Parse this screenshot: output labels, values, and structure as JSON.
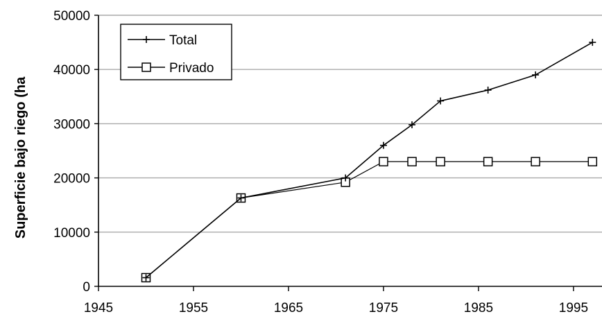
{
  "chart_data": {
    "type": "line",
    "title": "",
    "xlabel": "",
    "ylabel": "Superficie bajo riego (ha",
    "xlim": [
      1945,
      1998
    ],
    "ylim": [
      0,
      50000
    ],
    "x_ticks": [
      1945,
      1955,
      1965,
      1975,
      1985,
      1995
    ],
    "x_tick_labels": [
      "1945",
      "1955",
      "1965",
      "1975",
      "1985",
      "1995"
    ],
    "y_ticks": [
      0,
      10000,
      20000,
      30000,
      40000,
      50000
    ],
    "y_tick_labels": [
      "0",
      "10000",
      "20000",
      "30000",
      "40000",
      "50000"
    ],
    "grid": "horizontal",
    "legend_position": "top-left",
    "series": [
      {
        "name": "Total",
        "marker": "plus",
        "color": "#000000",
        "points": [
          {
            "x": 1950,
            "y": 1600
          },
          {
            "x": 1960,
            "y": 16300
          },
          {
            "x": 1971,
            "y": 20000
          },
          {
            "x": 1975,
            "y": 26000
          },
          {
            "x": 1978,
            "y": 29800
          },
          {
            "x": 1981,
            "y": 34200
          },
          {
            "x": 1986,
            "y": 36200
          },
          {
            "x": 1991,
            "y": 39000
          },
          {
            "x": 1997,
            "y": 45000
          }
        ]
      },
      {
        "name": "Privado",
        "marker": "square",
        "color": "#000000",
        "points": [
          {
            "x": 1950,
            "y": 1600
          },
          {
            "x": 1960,
            "y": 16300
          },
          {
            "x": 1971,
            "y": 19200
          },
          {
            "x": 1975,
            "y": 23000
          },
          {
            "x": 1978,
            "y": 23000
          },
          {
            "x": 1981,
            "y": 23000
          },
          {
            "x": 1986,
            "y": 23000
          },
          {
            "x": 1991,
            "y": 23000
          },
          {
            "x": 1997,
            "y": 23000
          }
        ]
      }
    ]
  }
}
